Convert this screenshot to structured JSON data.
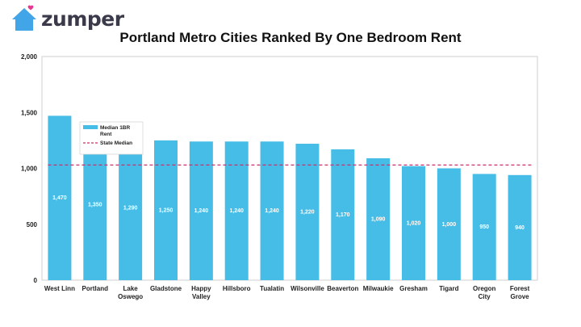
{
  "brand": {
    "name": "zumper",
    "icon": "house-with-heart-icon",
    "icon_color": "#42a5e8",
    "heart_color": "#e8368f"
  },
  "chart_data": {
    "type": "bar",
    "title": "Portland Metro Cities Ranked By One Bedroom Rent",
    "categories": [
      "West Linn",
      "Portland",
      "Lake Oswego",
      "Gladstone",
      "Happy Valley",
      "Hillsboro",
      "Tualatin",
      "Wilsonville",
      "Beaverton",
      "Milwaukie",
      "Gresham",
      "Tigard",
      "Oregon City",
      "Forest Grove"
    ],
    "series": [
      {
        "name": "Median 1BR Rent",
        "values": [
          1470,
          1350,
          1290,
          1250,
          1240,
          1240,
          1240,
          1220,
          1170,
          1090,
          1020,
          1000,
          950,
          940
        ],
        "labels": [
          "1,470",
          "1,350",
          "1,290",
          "1,250",
          "1,240",
          "1,240",
          "1,240",
          "1,220",
          "1,170",
          "1,090",
          "1,020",
          "1,000",
          "950",
          "940"
        ],
        "color": "#46bde6"
      }
    ],
    "reference_line": {
      "name": "State Median",
      "value": 1030,
      "color": "#cc2f6b",
      "style": "dashed"
    },
    "ylim": [
      0,
      2000
    ],
    "yticks": [
      0,
      500,
      1000,
      1500,
      2000
    ],
    "ytick_labels": [
      "0",
      "500",
      "1,000",
      "1,500",
      "2,000"
    ],
    "legend": {
      "placement": "top-left",
      "entries": [
        {
          "label_lines": [
            "Median 1BR",
            "Rent"
          ]
        },
        {
          "label_lines": [
            "State Median"
          ]
        }
      ]
    },
    "grid": false,
    "xlabel": "",
    "ylabel": ""
  }
}
